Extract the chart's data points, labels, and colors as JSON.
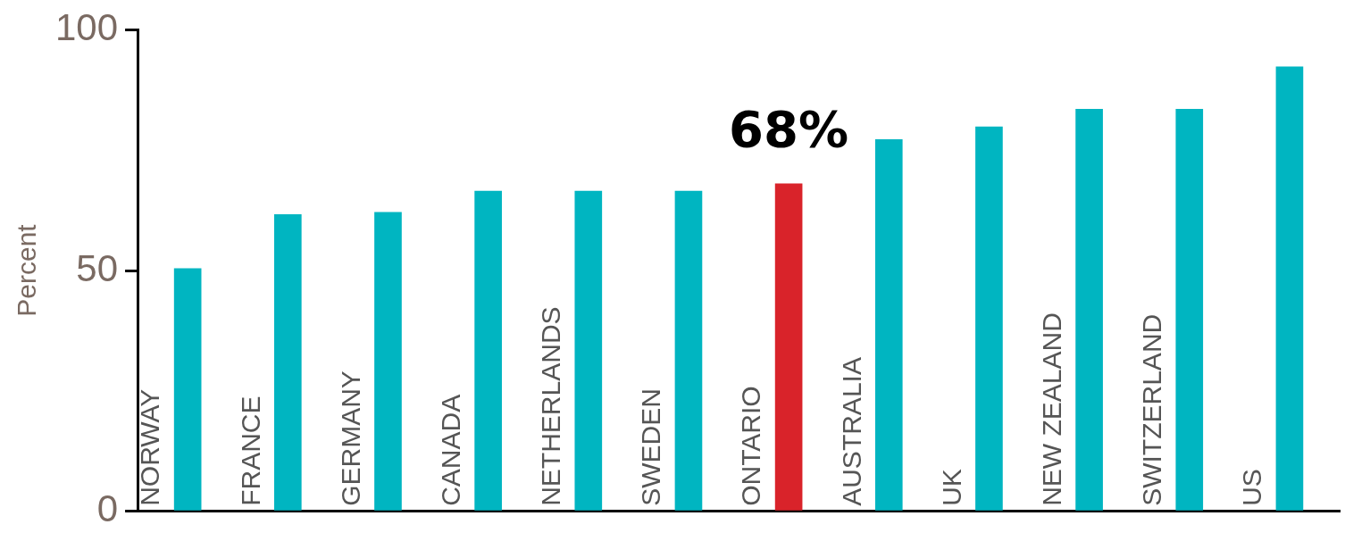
{
  "chart_data": {
    "type": "bar",
    "ylabel": "Percent",
    "categories": [
      "NORWAY",
      "FRANCE",
      "GERMANY",
      "CANADA",
      "NETHERLANDS",
      "SWEDEN",
      "ONTARIO",
      "AUSTRALIA",
      "UK",
      "NEW ZEALAND",
      "SWITZERLAND",
      "US"
    ],
    "values": [
      50.4,
      61.6,
      62.1,
      66.5,
      66.5,
      66.5,
      68,
      77.2,
      79.8,
      83.5,
      83.5,
      92.3
    ],
    "colors": [
      "#00b5c1",
      "#00b5c1",
      "#00b5c1",
      "#00b5c1",
      "#00b5c1",
      "#00b5c1",
      "#d9232a",
      "#00b5c1",
      "#00b5c1",
      "#00b5c1",
      "#00b5c1",
      "#00b5c1"
    ],
    "value_labels": [
      null,
      null,
      null,
      null,
      null,
      null,
      "68%",
      null,
      null,
      null,
      null,
      null
    ],
    "ylim": [
      0,
      100
    ],
    "yticks": [
      0,
      50,
      100
    ],
    "legend": false
  }
}
